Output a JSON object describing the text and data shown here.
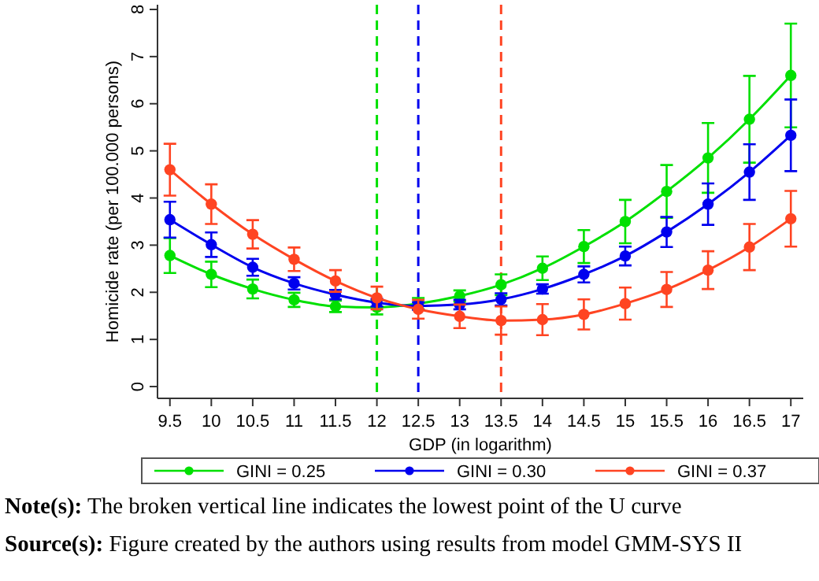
{
  "chart_data": {
    "type": "line",
    "xlabel": "GDP (in logarithm)",
    "ylabel": "Homicide rate (per 100.000 persons)",
    "x": [
      9.5,
      10,
      10.5,
      11,
      11.5,
      12,
      12.5,
      13,
      13.5,
      14,
      14.5,
      15,
      15.5,
      16,
      16.5,
      17
    ],
    "series": [
      {
        "name": "GINI = 0.25",
        "color": "#00e000",
        "values": [
          2.78,
          2.38,
          2.07,
          1.84,
          1.7,
          1.68,
          1.76,
          1.92,
          2.16,
          2.51,
          2.97,
          3.5,
          4.14,
          4.85,
          5.67,
          6.6
        ],
        "errors": [
          0.37,
          0.27,
          0.2,
          0.15,
          0.12,
          0.15,
          0.12,
          0.12,
          0.22,
          0.25,
          0.35,
          0.46,
          0.56,
          0.74,
          0.92,
          1.1
        ]
      },
      {
        "name": "GINI = 0.30",
        "color": "#0000ee",
        "values": [
          3.54,
          3.01,
          2.53,
          2.19,
          1.95,
          1.78,
          1.71,
          1.74,
          1.85,
          2.07,
          2.38,
          2.77,
          3.28,
          3.87,
          4.55,
          5.33
        ],
        "errors": [
          0.38,
          0.26,
          0.18,
          0.13,
          0.1,
          0.08,
          0.08,
          0.1,
          0.13,
          0.1,
          0.17,
          0.2,
          0.32,
          0.44,
          0.59,
          0.76
        ]
      },
      {
        "name": "GINI = 0.37",
        "color": "#ff4422",
        "values": [
          4.6,
          3.87,
          3.23,
          2.7,
          2.24,
          1.88,
          1.64,
          1.49,
          1.4,
          1.42,
          1.53,
          1.76,
          2.06,
          2.47,
          2.96,
          3.56
        ],
        "errors": [
          0.55,
          0.42,
          0.3,
          0.25,
          0.23,
          0.24,
          0.2,
          0.25,
          0.3,
          0.33,
          0.32,
          0.34,
          0.37,
          0.4,
          0.49,
          0.59
        ]
      }
    ],
    "xlim": [
      9.35,
      17.15
    ],
    "xticks": [
      9.5,
      10,
      10.5,
      11,
      11.5,
      12,
      12.5,
      13,
      13.5,
      14,
      14.5,
      15,
      15.5,
      16,
      16.5,
      17
    ],
    "ylim": [
      -0.25,
      8.1
    ],
    "yticks": [
      0,
      1,
      2,
      3,
      4,
      5,
      6,
      7,
      8
    ],
    "ref_lines": [
      {
        "axis": "x",
        "value": 12,
        "color": "#00e000",
        "line_style": "dashed"
      },
      {
        "axis": "x",
        "value": 12.5,
        "color": "#0000ee",
        "line_style": "dashed"
      },
      {
        "axis": "x",
        "value": 13.5,
        "color": "#ff4422",
        "line_style": "dashed"
      }
    ],
    "marker": "circle",
    "line_style": "solid",
    "legend": "bottom",
    "grid": false,
    "annotations": [
      "Note(s): The broken vertical line indicates the lowest point of the U curve",
      "Source(s): Figure created by the authors using results from model GMM-SYS II"
    ]
  }
}
